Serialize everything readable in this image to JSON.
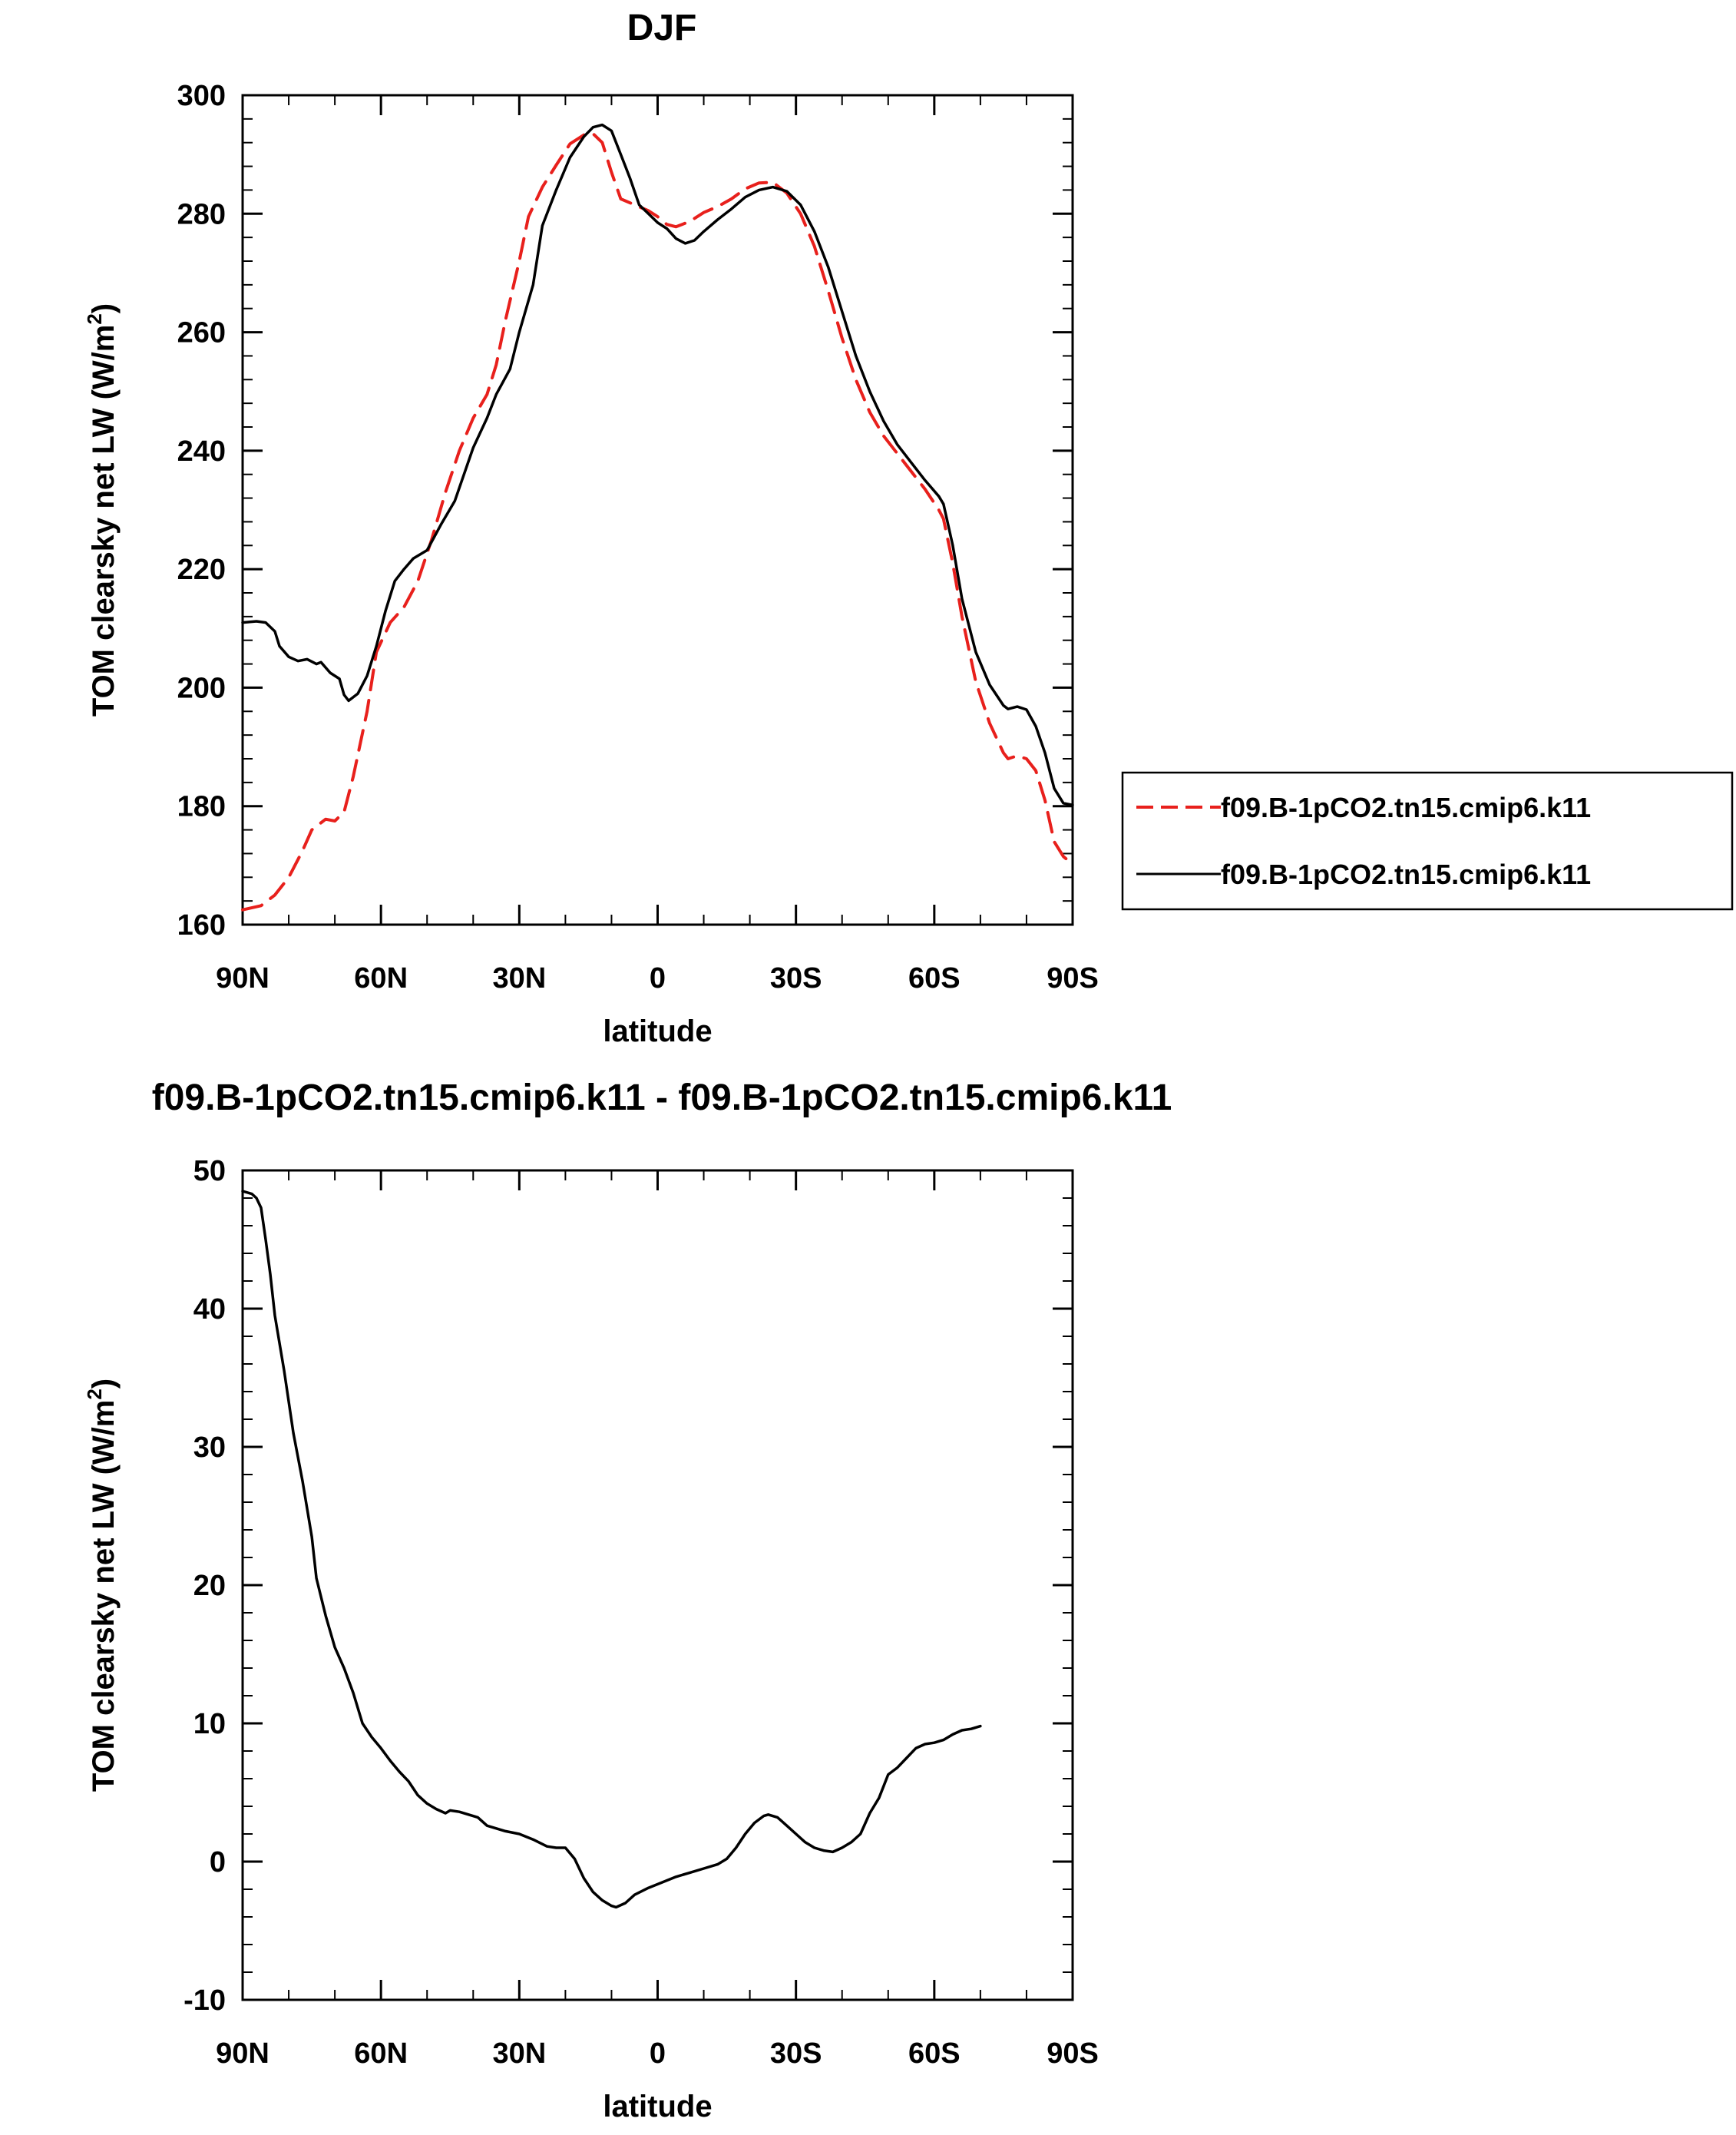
{
  "chart_data": [
    {
      "type": "line",
      "title": "DJF",
      "xlabel": "latitude",
      "ylabel": "TOM clearsky net LW (W/m",
      "ylabel_sup": "2",
      "ylabel_end": ")",
      "xlim": [
        90,
        -90
      ],
      "ylim": [
        160,
        300
      ],
      "xticks": [
        90,
        60,
        30,
        0,
        -30,
        -60,
        -90
      ],
      "xticklabels": [
        "90N",
        "60N",
        "30N",
        "0",
        "30S",
        "60S",
        "90S"
      ],
      "yticks": [
        160,
        180,
        200,
        220,
        240,
        260,
        280,
        300
      ],
      "yticklabels": [
        "160",
        "180",
        "200",
        "220",
        "240",
        "260",
        "280",
        "300"
      ],
      "legend": "right",
      "series": [
        {
          "name": "f09.B-1pCO2.tn15.cmip6.k11",
          "color": "#e8201c",
          "dash": "dashed",
          "points": [
            [
              90,
              162.5
            ],
            [
              86,
              163.2
            ],
            [
              83,
              165
            ],
            [
              80,
              168
            ],
            [
              77,
              172.5
            ],
            [
              75,
              176
            ],
            [
              72,
              177.8
            ],
            [
              70,
              177.5
            ],
            [
              68,
              179
            ],
            [
              66,
              185
            ],
            [
              63,
              196
            ],
            [
              61,
              206
            ],
            [
              58,
              211
            ],
            [
              55,
              213.6
            ],
            [
              52,
              218
            ],
            [
              49,
              225
            ],
            [
              46,
              233
            ],
            [
              43,
              240
            ],
            [
              40,
              245.5
            ],
            [
              37,
              249.5
            ],
            [
              35,
              254.5
            ],
            [
              33,
              262
            ],
            [
              30,
              272
            ],
            [
              28,
              279.5
            ],
            [
              25,
              284.5
            ],
            [
              22,
              288.2
            ],
            [
              19,
              291.8
            ],
            [
              16,
              293.3
            ],
            [
              14,
              293.5
            ],
            [
              12,
              292
            ],
            [
              10,
              287
            ],
            [
              8,
              282.5
            ],
            [
              5,
              281.5
            ],
            [
              2,
              280.5
            ],
            [
              0,
              279.5
            ],
            [
              -2,
              278.2
            ],
            [
              -4,
              277.8
            ],
            [
              -7,
              278.7
            ],
            [
              -10,
              280.2
            ],
            [
              -13,
              281.2
            ],
            [
              -16,
              282.5
            ],
            [
              -19,
              284.2
            ],
            [
              -22,
              285.2
            ],
            [
              -25,
              285.3
            ],
            [
              -28,
              283.5
            ],
            [
              -31,
              280
            ],
            [
              -34,
              274.5
            ],
            [
              -37,
              267
            ],
            [
              -40,
              259
            ],
            [
              -43,
              252
            ],
            [
              -46,
              246.5
            ],
            [
              -49,
              242.5
            ],
            [
              -52,
              239.5
            ],
            [
              -55,
              236.5
            ],
            [
              -58,
              233.5
            ],
            [
              -61,
              230
            ],
            [
              -62,
              228.5
            ],
            [
              -64,
              221
            ],
            [
              -66,
              212
            ],
            [
              -69,
              201
            ],
            [
              -72,
              194
            ],
            [
              -75,
              189
            ],
            [
              -76,
              188
            ],
            [
              -78,
              188.5
            ],
            [
              -80,
              188
            ],
            [
              -82,
              186
            ],
            [
              -84,
              181
            ],
            [
              -86,
              174
            ],
            [
              -88,
              171.5
            ],
            [
              -90,
              170.2
            ]
          ]
        },
        {
          "name": "f09.B-1pCO2.tn15.cmip6.k11",
          "color": "#000000",
          "dash": "solid",
          "points": [
            [
              90,
              211
            ],
            [
              87,
              211.2
            ],
            [
              85,
              211
            ],
            [
              83,
              209.5
            ],
            [
              82,
              207
            ],
            [
              80,
              205.2
            ],
            [
              78,
              204.5
            ],
            [
              76,
              204.8
            ],
            [
              74,
              204
            ],
            [
              73,
              204.3
            ],
            [
              71,
              202.5
            ],
            [
              69,
              201.5
            ],
            [
              68,
              198.8
            ],
            [
              67,
              197.8
            ],
            [
              65,
              199
            ],
            [
              63,
              202
            ],
            [
              61,
              207
            ],
            [
              59,
              213
            ],
            [
              57,
              218
            ],
            [
              55,
              220
            ],
            [
              53,
              221.8
            ],
            [
              50,
              223.2
            ],
            [
              47,
              227.5
            ],
            [
              44,
              231.5
            ],
            [
              42,
              236
            ],
            [
              40,
              240.5
            ],
            [
              37,
              245.5
            ],
            [
              35,
              249.5
            ],
            [
              32,
              253.8
            ],
            [
              30,
              260
            ],
            [
              27,
              268
            ],
            [
              25,
              278
            ],
            [
              22,
              284
            ],
            [
              19,
              289.5
            ],
            [
              16,
              293
            ],
            [
              14,
              294.6
            ],
            [
              12,
              295
            ],
            [
              10,
              294
            ],
            [
              8,
              290
            ],
            [
              6,
              286
            ],
            [
              4,
              281.5
            ],
            [
              2,
              280
            ],
            [
              0,
              278.5
            ],
            [
              -2,
              277.5
            ],
            [
              -4,
              275.8
            ],
            [
              -6,
              275
            ],
            [
              -8,
              275.5
            ],
            [
              -10,
              277
            ],
            [
              -13,
              279
            ],
            [
              -16,
              280.8
            ],
            [
              -19,
              282.8
            ],
            [
              -22,
              284
            ],
            [
              -25,
              284.5
            ],
            [
              -28,
              283.8
            ],
            [
              -31,
              281.5
            ],
            [
              -34,
              277
            ],
            [
              -37,
              271
            ],
            [
              -40,
              263.5
            ],
            [
              -43,
              256
            ],
            [
              -46,
              250
            ],
            [
              -49,
              245
            ],
            [
              -52,
              241
            ],
            [
              -55,
              238
            ],
            [
              -58,
              235
            ],
            [
              -61,
              232.3
            ],
            [
              -62,
              231
            ],
            [
              -64,
              224
            ],
            [
              -66,
              215
            ],
            [
              -69,
              206
            ],
            [
              -72,
              200.5
            ],
            [
              -75,
              197
            ],
            [
              -76,
              196.4
            ],
            [
              -78,
              196.8
            ],
            [
              -80,
              196.3
            ],
            [
              -82,
              193.5
            ],
            [
              -84,
              189
            ],
            [
              -86,
              183
            ],
            [
              -88,
              180.5
            ],
            [
              -90,
              180.2
            ]
          ]
        }
      ]
    },
    {
      "type": "line",
      "title": "f09.B-1pCO2.tn15.cmip6.k11 - f09.B-1pCO2.tn15.cmip6.k11",
      "xlabel": "latitude",
      "ylabel": "TOM clearsky net LW (W/m",
      "ylabel_sup": "2",
      "ylabel_end": ")",
      "xlim": [
        90,
        -90
      ],
      "ylim": [
        -10,
        50
      ],
      "xticks": [
        90,
        60,
        30,
        0,
        -30,
        -60,
        -90
      ],
      "xticklabels": [
        "90N",
        "60N",
        "30N",
        "0",
        "30S",
        "60S",
        "90S"
      ],
      "yticks": [
        -10,
        0,
        10,
        20,
        30,
        40,
        50
      ],
      "yticklabels": [
        "-10",
        "0",
        "10",
        "20",
        "30",
        "40",
        "50"
      ],
      "series": [
        {
          "color": "#000000",
          "dash": "solid",
          "points": [
            [
              90,
              48.5
            ],
            [
              88,
              48.3
            ],
            [
              87,
              48.0
            ],
            [
              86,
              47.3
            ],
            [
              85,
              45.0
            ],
            [
              84,
              42.5
            ],
            [
              83,
              39.5
            ],
            [
              81,
              35.5
            ],
            [
              79,
              31.0
            ],
            [
              77,
              27.5
            ],
            [
              75,
              23.5
            ],
            [
              74,
              20.5
            ],
            [
              72,
              17.8
            ],
            [
              70,
              15.5
            ],
            [
              68,
              14.0
            ],
            [
              66,
              12.2
            ],
            [
              64,
              10.0
            ],
            [
              62,
              9.0
            ],
            [
              60,
              8.2
            ],
            [
              58,
              7.3
            ],
            [
              56,
              6.5
            ],
            [
              54,
              5.8
            ],
            [
              52,
              4.8
            ],
            [
              50,
              4.2
            ],
            [
              48,
              3.8
            ],
            [
              46,
              3.5
            ],
            [
              45,
              3.7
            ],
            [
              43,
              3.6
            ],
            [
              41,
              3.4
            ],
            [
              39,
              3.2
            ],
            [
              37,
              2.6
            ],
            [
              35,
              2.4
            ],
            [
              33,
              2.2
            ],
            [
              30,
              2.0
            ],
            [
              27,
              1.6
            ],
            [
              24,
              1.1
            ],
            [
              22,
              1.0
            ],
            [
              20,
              1.0
            ],
            [
              18,
              0.2
            ],
            [
              16,
              -1.2
            ],
            [
              14,
              -2.2
            ],
            [
              12,
              -2.8
            ],
            [
              10,
              -3.2
            ],
            [
              9,
              -3.3
            ],
            [
              7,
              -3.0
            ],
            [
              5,
              -2.4
            ],
            [
              2,
              -1.9
            ],
            [
              -1,
              -1.5
            ],
            [
              -4,
              -1.1
            ],
            [
              -7,
              -0.8
            ],
            [
              -10,
              -0.5
            ],
            [
              -13,
              -0.2
            ],
            [
              -15,
              0.2
            ],
            [
              -17,
              1.0
            ],
            [
              -19,
              2.0
            ],
            [
              -21,
              2.8
            ],
            [
              -23,
              3.3
            ],
            [
              -24,
              3.4
            ],
            [
              -26,
              3.2
            ],
            [
              -28,
              2.6
            ],
            [
              -30,
              2.0
            ],
            [
              -32,
              1.4
            ],
            [
              -34,
              1.0
            ],
            [
              -36,
              0.8
            ],
            [
              -38,
              0.7
            ],
            [
              -40,
              1.0
            ],
            [
              -42,
              1.4
            ],
            [
              -44,
              2.0
            ],
            [
              -46,
              3.5
            ],
            [
              -48,
              4.6
            ],
            [
              -50,
              6.3
            ],
            [
              -52,
              6.8
            ],
            [
              -54,
              7.5
            ],
            [
              -56,
              8.2
            ],
            [
              -58,
              8.5
            ],
            [
              -60,
              8.6
            ],
            [
              -62,
              8.8
            ],
            [
              -64,
              9.2
            ],
            [
              -66,
              9.5
            ],
            [
              -68,
              9.6
            ],
            [
              -70,
              9.8
            ]
          ]
        }
      ]
    }
  ]
}
